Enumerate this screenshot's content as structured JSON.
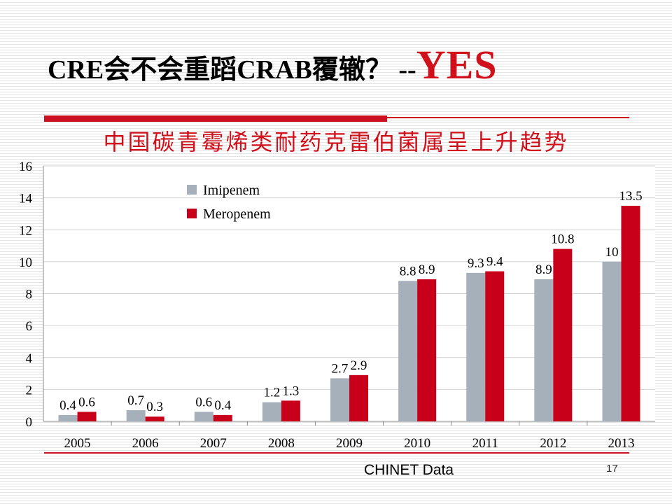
{
  "slide": {
    "title_main": "CRE会不会重蹈CRAB覆辙？ --",
    "title_emph": "YES",
    "subtitle": "中国碳青霉烯类耐药克雷伯菌属呈上升趋势",
    "source": "CHINET Data",
    "page_number": "17"
  },
  "colors": {
    "imipenem": "#a5b0bb",
    "meropenem": "#c8001a",
    "accent": "#d0101a"
  },
  "chart_data": {
    "type": "bar",
    "categories": [
      "2005",
      "2006",
      "2007",
      "2008",
      "2009",
      "2010",
      "2011",
      "2012",
      "2013"
    ],
    "series": [
      {
        "name": "Imipenem",
        "values": [
          0.4,
          0.7,
          0.6,
          1.2,
          2.7,
          8.8,
          9.3,
          8.9,
          10
        ]
      },
      {
        "name": "Meropenem",
        "values": [
          0.6,
          0.3,
          0.4,
          1.3,
          2.9,
          8.9,
          9.4,
          10.8,
          13.5
        ]
      }
    ],
    "ylim": [
      0,
      16
    ],
    "yticks": [
      "0",
      "2",
      "4",
      "6",
      "8",
      "10",
      "12",
      "14",
      "16"
    ],
    "grid": true,
    "legend": "top-left",
    "data_labels": true
  }
}
